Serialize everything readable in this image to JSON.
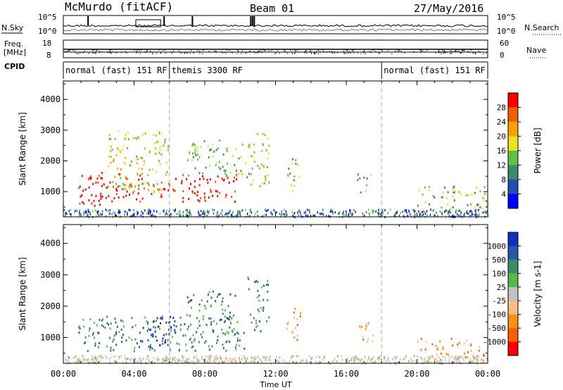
{
  "header": {
    "station": "McMurdo (fitACF)",
    "beam": "Beam 01",
    "date": "27/May/2016"
  },
  "params": {
    "nsky_label": "N.Sky",
    "nsky_ticks": [
      "10^5",
      "10^0"
    ],
    "nsearch_label": "N.Search",
    "nsearch_ticks": [
      "10^5",
      "10^0"
    ],
    "freq_label_1": "Freq.",
    "freq_label_2": "[MHz]",
    "freq_ticks": [
      "18",
      "8"
    ],
    "nave_label": "Nave",
    "nave_ticks": [
      "60",
      "0"
    ],
    "cpid_label": "CPID",
    "cpid_segments": [
      {
        "label": "normal (fast) 151 RF",
        "start_hour": 0,
        "end_hour": 6
      },
      {
        "label": "themis 3300 RF",
        "start_hour": 6,
        "end_hour": 18
      },
      {
        "label": "normal (fast) 151 RF",
        "start_hour": 18,
        "end_hour": 24
      }
    ]
  },
  "chart_data": [
    {
      "type": "heatmap",
      "panel": "power",
      "ylabel": "Slant Range [km]",
      "ylim": [
        180,
        4600
      ],
      "yticks": [
        "1000",
        "2000",
        "3000",
        "4000"
      ],
      "xlim": [
        0,
        24
      ],
      "xticks": [
        "00:00",
        "04:00",
        "08:00",
        "12:00",
        "16:00",
        "20:00",
        "00:00"
      ],
      "colorbar": {
        "label": "Power [dB]",
        "ticks": [
          "4",
          "8",
          "12",
          "16",
          "20",
          "24",
          "28"
        ],
        "colors": [
          "#0000ff",
          "#2050b0",
          "#3a8a6a",
          "#60c040",
          "#f0e020",
          "#f8a000",
          "#f06000",
          "#ff0000"
        ]
      },
      "regions": [
        {
          "t0": 0.8,
          "t1": 2.2,
          "r0": 550,
          "r1": 1700,
          "level": 7
        },
        {
          "t0": 1.5,
          "t1": 9.8,
          "r0": 700,
          "r1": 1600,
          "level": 7
        },
        {
          "t0": 2.5,
          "t1": 6.0,
          "r0": 1000,
          "r1": 3000,
          "level": 4
        },
        {
          "t0": 7.0,
          "t1": 10.5,
          "r0": 1500,
          "r1": 2700,
          "level": 3
        },
        {
          "t0": 10.4,
          "t1": 11.6,
          "r0": 1200,
          "r1": 3000,
          "level": 4
        },
        {
          "t0": 12.6,
          "t1": 13.4,
          "r0": 1000,
          "r1": 2200,
          "level": 3
        },
        {
          "t0": 16.6,
          "t1": 17.4,
          "r0": 950,
          "r1": 1600,
          "level": 3
        },
        {
          "t0": 20.0,
          "t1": 24.0,
          "r0": 300,
          "r1": 1200,
          "level": 3
        }
      ]
    },
    {
      "type": "heatmap",
      "panel": "velocity",
      "ylabel": "Slant Range [km]",
      "ylim": [
        180,
        4600
      ],
      "yticks": [
        "1000",
        "2000",
        "3000",
        "4000"
      ],
      "xlim": [
        0,
        24
      ],
      "xticks": [
        "00:00",
        "04:00",
        "08:00",
        "12:00",
        "16:00",
        "20:00",
        "00:00"
      ],
      "xlabel": "Time UT",
      "colorbar": {
        "label": "Velocity [m s-1]",
        "ticks": [
          "1000",
          "500",
          "100",
          "25",
          "-25",
          "-100",
          "-500",
          "-1000"
        ],
        "colors": [
          "#1030c0",
          "#2858a8",
          "#3c8c6c",
          "#58b848",
          "#c0c0c0",
          "#f8c080",
          "#f89010",
          "#f86000",
          "#ff0000"
        ]
      },
      "regions": [
        {
          "t0": 0.8,
          "t1": 10.2,
          "r0": 600,
          "r1": 1700,
          "level": 2
        },
        {
          "t0": 4.2,
          "t1": 6.3,
          "r0": 700,
          "r1": 1700,
          "level": 0
        },
        {
          "t0": 6.8,
          "t1": 9.8,
          "r0": 1100,
          "r1": 2500,
          "level": 2
        },
        {
          "t0": 10.4,
          "t1": 11.6,
          "r0": 1200,
          "r1": 3000,
          "level": 2
        },
        {
          "t0": 12.6,
          "t1": 13.4,
          "r0": 900,
          "r1": 2000,
          "level": 6
        },
        {
          "t0": 16.5,
          "t1": 17.5,
          "r0": 900,
          "r1": 1600,
          "level": 6
        },
        {
          "t0": 20.0,
          "t1": 24.0,
          "r0": 300,
          "r1": 1000,
          "level": 6
        }
      ]
    }
  ]
}
